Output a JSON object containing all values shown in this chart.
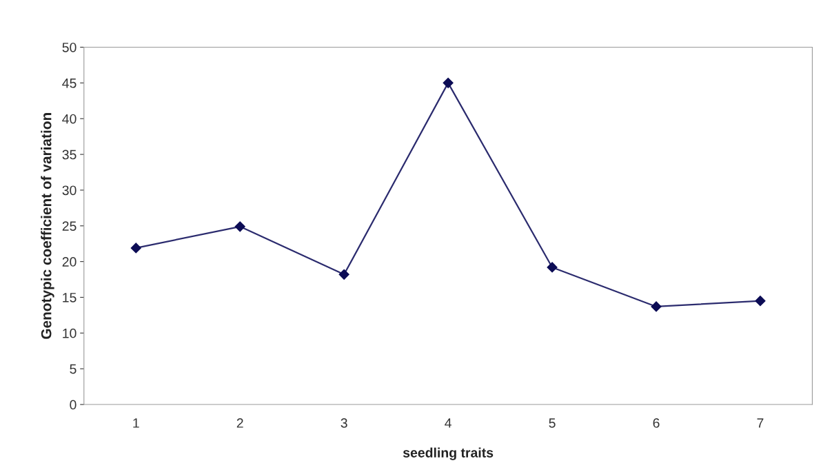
{
  "chart_data": {
    "type": "line",
    "xlabel": "seedling traits",
    "ylabel": "Genotypic coefficient of variation",
    "categories": [
      "1",
      "2",
      "3",
      "4",
      "5",
      "6",
      "7"
    ],
    "series": [
      {
        "color": "#2b2b6e",
        "values": [
          21.9,
          24.9,
          18.2,
          45.0,
          19.2,
          13.7,
          14.5
        ]
      }
    ],
    "ylim": [
      0,
      50
    ],
    "yticks": [
      0,
      5,
      10,
      15,
      20,
      25,
      30,
      35,
      40,
      45,
      50
    ],
    "marker": "diamond",
    "line_style": "solid",
    "grid": false,
    "legend": false
  }
}
